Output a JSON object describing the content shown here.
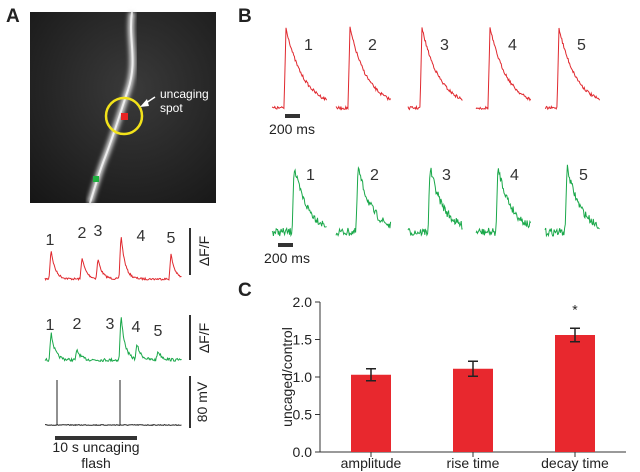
{
  "panel_a": {
    "label": "A",
    "annotation": [
      "uncaging",
      "spot"
    ],
    "red_labels": [
      "1",
      "2",
      "3",
      "4",
      "5"
    ],
    "green_labels": [
      "1",
      "2",
      "3",
      "4",
      "5"
    ],
    "red_scale": "ΔF/F",
    "green_scale": "ΔF/F",
    "voltage_scale": "80 mV",
    "flash_label": [
      "10 s uncaging",
      "flash"
    ]
  },
  "panel_b": {
    "label": "B",
    "red_labels": [
      "1",
      "2",
      "3",
      "4",
      "5"
    ],
    "green_labels": [
      "1",
      "2",
      "3",
      "4",
      "5"
    ],
    "red_scale": "200 ms",
    "green_scale": "200 ms"
  },
  "panel_c": {
    "label": "C"
  },
  "chart_data": {
    "type": "bar",
    "ylabel": "uncaged/control",
    "categories": [
      "amplitude",
      "rise time",
      "decay time"
    ],
    "values": [
      1.03,
      1.11,
      1.56
    ],
    "errors": [
      0.08,
      0.1,
      0.09
    ],
    "color": "#e8282e",
    "annotations": [
      null,
      null,
      "*"
    ],
    "ylim": [
      0,
      2
    ],
    "yticks": [
      {
        "value": 0,
        "label": "0.0"
      },
      {
        "value": 0.5,
        "label": "0.5"
      },
      {
        "value": 1,
        "label": "1.0"
      },
      {
        "value": 1.5,
        "label": "1.5"
      },
      {
        "value": 2,
        "label": "2.0"
      }
    ]
  }
}
